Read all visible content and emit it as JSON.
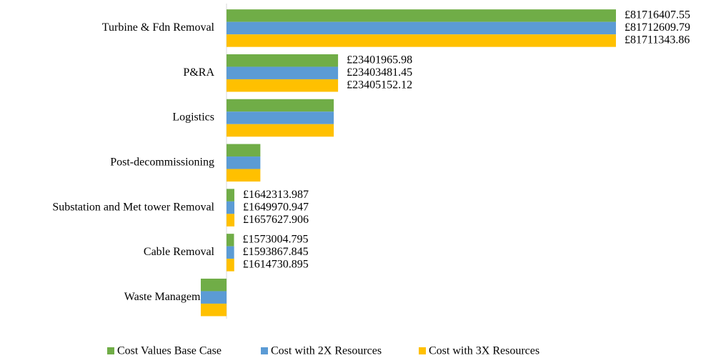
{
  "chart_data": {
    "type": "hbar",
    "categories": [
      "Turbine & Fdn Removal",
      "P&RA",
      "Logistics",
      "Post-decommissioning",
      "Substation and Met tower Removal",
      "Cable Removal",
      "Waste Management"
    ],
    "series": [
      {
        "name": "Cost Values Base Case",
        "color": "#70ad47",
        "values": [
          81716407.55,
          23401965.98,
          22500000,
          7100000,
          1642313.987,
          1573004.795,
          -5400000
        ],
        "value_labels": [
          "£81716407.55",
          "£23401965.98",
          null,
          null,
          "£1642313.987",
          "£1573004.795",
          null
        ]
      },
      {
        "name": "Cost with 2X Resources",
        "color": "#5b9bd5",
        "values": [
          81712609.79,
          23403481.45,
          22500000,
          7100000,
          1649970.947,
          1593867.845,
          -5400000
        ],
        "value_labels": [
          "£81712609.79",
          "£23403481.45",
          null,
          null,
          "£1649970.947",
          "£1593867.845",
          null
        ]
      },
      {
        "name": "Cost with 3X Resources",
        "color": "#ffc000",
        "values": [
          81711343.86,
          23405152.12,
          22500000,
          7100000,
          1657627.906,
          1614730.895,
          -5400000
        ],
        "value_labels": [
          "£81711343.86",
          "£23405152.12",
          null,
          null,
          "£1657627.906",
          "£1614730.895",
          null
        ]
      }
    ]
  }
}
